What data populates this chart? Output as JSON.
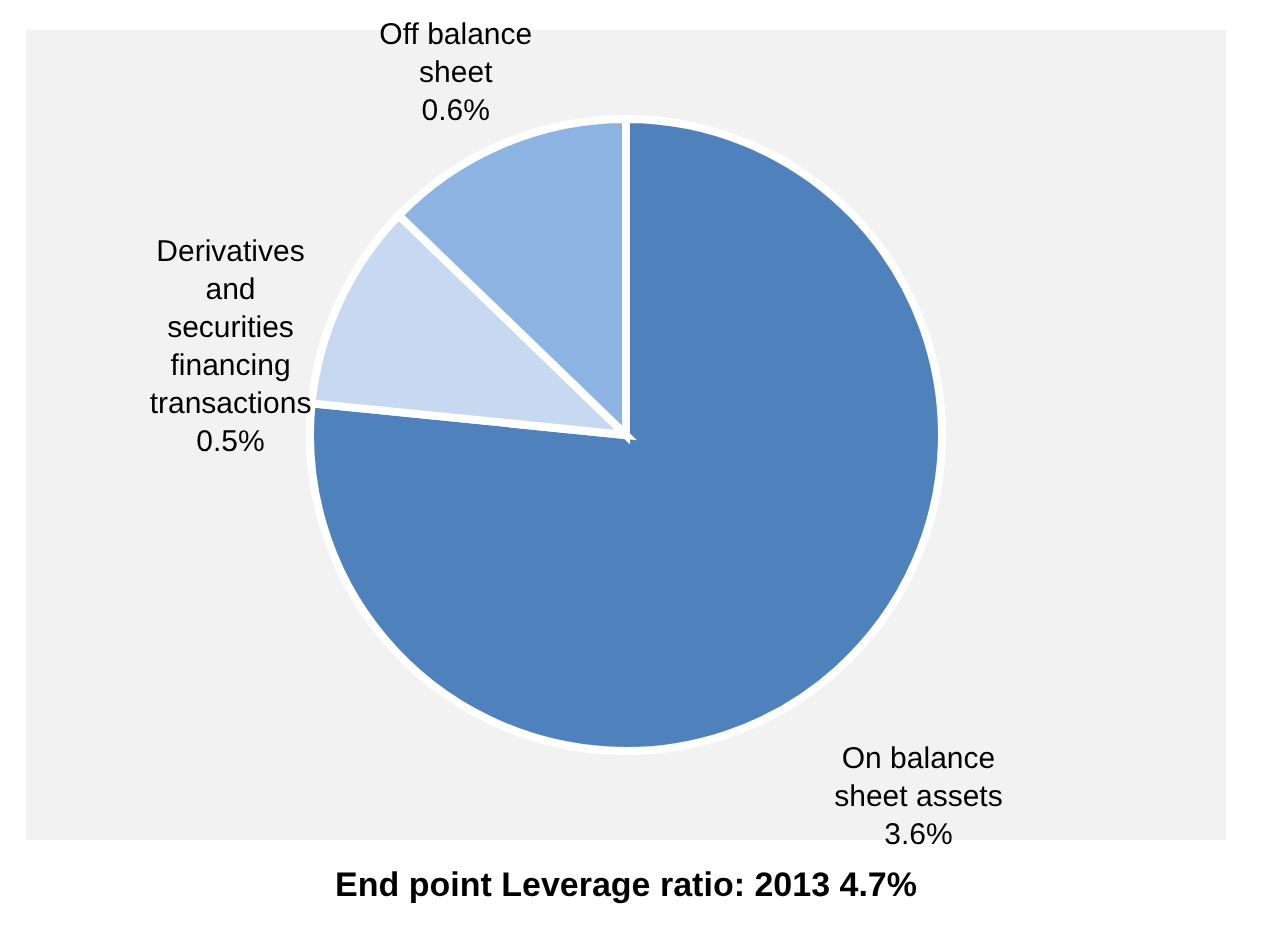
{
  "chart_data": {
    "type": "pie",
    "title": "End point Leverage ratio: 2013 4.7%",
    "categories": [
      "On balance sheet assets",
      "Derivatives and securities financing transactions",
      "Off balance sheet"
    ],
    "values": [
      3.6,
      0.5,
      0.6
    ],
    "value_labels": [
      "3.6%",
      "0.5%",
      "0.6%"
    ],
    "colors": [
      "#4f81bd",
      "#c6d9f1",
      "#8db3e2"
    ],
    "legend": false
  }
}
